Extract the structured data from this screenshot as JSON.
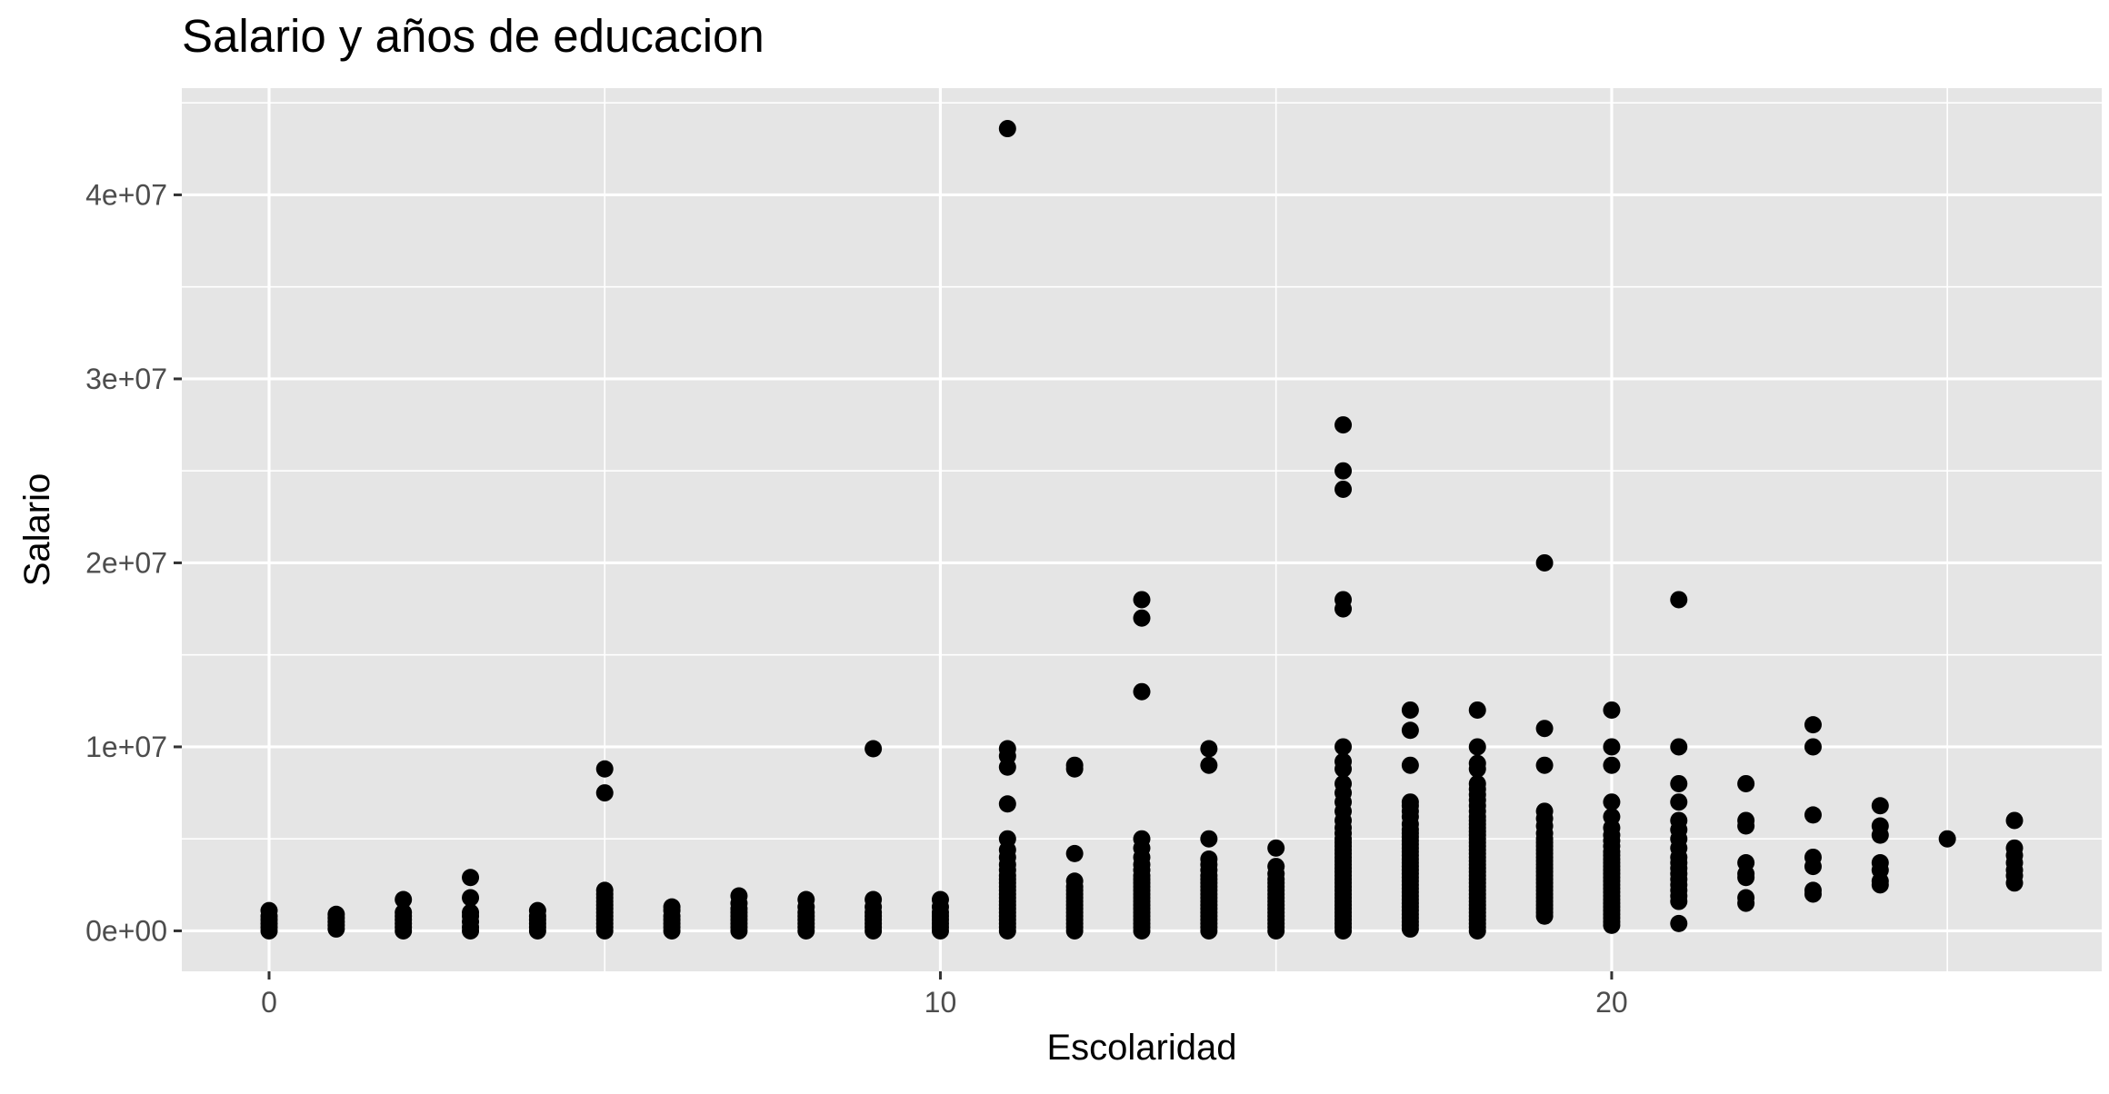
{
  "chart_data": {
    "type": "scatter",
    "title": "Salario y años de educacion",
    "xlabel": "Escolaridad",
    "ylabel": "Salario",
    "xlim": [
      -1.3,
      27.3
    ],
    "ylim": [
      -2200000,
      45800000
    ],
    "x_ticks": [
      0,
      10,
      20
    ],
    "x_tick_labels": [
      "0",
      "10",
      "20"
    ],
    "y_ticks": [
      0,
      10000000,
      20000000,
      30000000,
      40000000
    ],
    "y_tick_labels": [
      "0e+00",
      "1e+07",
      "2e+07",
      "3e+07",
      "4e+07"
    ],
    "grid": true,
    "legend": "none",
    "colors": {
      "panel": "#E5E5E5",
      "grid": "#FFFFFF",
      "point": "#000000",
      "text": "#4D4D4D",
      "title": "#000000"
    },
    "points": [
      [
        0,
        0
      ],
      [
        0,
        200000
      ],
      [
        0,
        400000
      ],
      [
        0,
        600000
      ],
      [
        0,
        800000
      ],
      [
        0,
        1100000
      ],
      [
        1,
        100000
      ],
      [
        1,
        300000
      ],
      [
        1,
        500000
      ],
      [
        1,
        700000
      ],
      [
        1,
        900000
      ],
      [
        2,
        0
      ],
      [
        2,
        200000
      ],
      [
        2,
        400000
      ],
      [
        2,
        600000
      ],
      [
        2,
        800000
      ],
      [
        2,
        1000000
      ],
      [
        2,
        1700000
      ],
      [
        3,
        0
      ],
      [
        3,
        200000
      ],
      [
        3,
        500000
      ],
      [
        3,
        800000
      ],
      [
        3,
        1000000
      ],
      [
        3,
        1800000
      ],
      [
        3,
        2900000
      ],
      [
        4,
        0
      ],
      [
        4,
        200000
      ],
      [
        4,
        400000
      ],
      [
        4,
        600000
      ],
      [
        4,
        800000
      ],
      [
        4,
        1100000
      ],
      [
        5,
        0
      ],
      [
        5,
        200000
      ],
      [
        5,
        400000
      ],
      [
        5,
        600000
      ],
      [
        5,
        800000
      ],
      [
        5,
        1000000
      ],
      [
        5,
        1200000
      ],
      [
        5,
        1400000
      ],
      [
        5,
        1600000
      ],
      [
        5,
        1800000
      ],
      [
        5,
        2000000
      ],
      [
        5,
        2200000
      ],
      [
        5,
        7500000
      ],
      [
        5,
        8800000
      ],
      [
        6,
        0
      ],
      [
        6,
        200000
      ],
      [
        6,
        400000
      ],
      [
        6,
        600000
      ],
      [
        6,
        800000
      ],
      [
        6,
        1100000
      ],
      [
        6,
        1300000
      ],
      [
        7,
        0
      ],
      [
        7,
        200000
      ],
      [
        7,
        400000
      ],
      [
        7,
        600000
      ],
      [
        7,
        800000
      ],
      [
        7,
        1000000
      ],
      [
        7,
        1200000
      ],
      [
        7,
        1500000
      ],
      [
        7,
        1900000
      ],
      [
        8,
        0
      ],
      [
        8,
        200000
      ],
      [
        8,
        400000
      ],
      [
        8,
        600000
      ],
      [
        8,
        800000
      ],
      [
        8,
        1000000
      ],
      [
        8,
        1300000
      ],
      [
        8,
        1700000
      ],
      [
        9,
        0
      ],
      [
        9,
        200000
      ],
      [
        9,
        400000
      ],
      [
        9,
        600000
      ],
      [
        9,
        800000
      ],
      [
        9,
        1000000
      ],
      [
        9,
        1300000
      ],
      [
        9,
        1700000
      ],
      [
        9,
        9900000
      ],
      [
        10,
        0
      ],
      [
        10,
        200000
      ],
      [
        10,
        400000
      ],
      [
        10,
        600000
      ],
      [
        10,
        800000
      ],
      [
        10,
        1000000
      ],
      [
        10,
        1300000
      ],
      [
        10,
        1700000
      ],
      [
        11,
        0
      ],
      [
        11,
        200000
      ],
      [
        11,
        400000
      ],
      [
        11,
        600000
      ],
      [
        11,
        800000
      ],
      [
        11,
        1000000
      ],
      [
        11,
        1200000
      ],
      [
        11,
        1400000
      ],
      [
        11,
        1600000
      ],
      [
        11,
        1800000
      ],
      [
        11,
        2000000
      ],
      [
        11,
        2200000
      ],
      [
        11,
        2400000
      ],
      [
        11,
        2600000
      ],
      [
        11,
        2800000
      ],
      [
        11,
        3000000
      ],
      [
        11,
        3300000
      ],
      [
        11,
        3600000
      ],
      [
        11,
        4000000
      ],
      [
        11,
        4400000
      ],
      [
        11,
        5000000
      ],
      [
        11,
        6900000
      ],
      [
        11,
        8900000
      ],
      [
        11,
        9500000
      ],
      [
        11,
        9900000
      ],
      [
        11,
        43600000
      ],
      [
        12,
        0
      ],
      [
        12,
        200000
      ],
      [
        12,
        400000
      ],
      [
        12,
        600000
      ],
      [
        12,
        800000
      ],
      [
        12,
        1000000
      ],
      [
        12,
        1200000
      ],
      [
        12,
        1400000
      ],
      [
        12,
        1600000
      ],
      [
        12,
        1800000
      ],
      [
        12,
        2000000
      ],
      [
        12,
        2200000
      ],
      [
        12,
        2400000
      ],
      [
        12,
        2700000
      ],
      [
        12,
        4200000
      ],
      [
        12,
        8800000
      ],
      [
        12,
        9000000
      ],
      [
        13,
        0
      ],
      [
        13,
        200000
      ],
      [
        13,
        400000
      ],
      [
        13,
        600000
      ],
      [
        13,
        800000
      ],
      [
        13,
        1000000
      ],
      [
        13,
        1200000
      ],
      [
        13,
        1400000
      ],
      [
        13,
        1600000
      ],
      [
        13,
        1800000
      ],
      [
        13,
        2000000
      ],
      [
        13,
        2200000
      ],
      [
        13,
        2400000
      ],
      [
        13,
        2600000
      ],
      [
        13,
        2800000
      ],
      [
        13,
        3000000
      ],
      [
        13,
        3300000
      ],
      [
        13,
        3600000
      ],
      [
        13,
        4000000
      ],
      [
        13,
        4500000
      ],
      [
        13,
        5000000
      ],
      [
        13,
        13000000
      ],
      [
        13,
        17000000
      ],
      [
        13,
        18000000
      ],
      [
        14,
        0
      ],
      [
        14,
        200000
      ],
      [
        14,
        400000
      ],
      [
        14,
        600000
      ],
      [
        14,
        800000
      ],
      [
        14,
        1000000
      ],
      [
        14,
        1200000
      ],
      [
        14,
        1400000
      ],
      [
        14,
        1600000
      ],
      [
        14,
        1800000
      ],
      [
        14,
        2000000
      ],
      [
        14,
        2200000
      ],
      [
        14,
        2400000
      ],
      [
        14,
        2600000
      ],
      [
        14,
        2800000
      ],
      [
        14,
        3000000
      ],
      [
        14,
        3300000
      ],
      [
        14,
        3600000
      ],
      [
        14,
        3900000
      ],
      [
        14,
        5000000
      ],
      [
        14,
        9000000
      ],
      [
        14,
        9900000
      ],
      [
        15,
        0
      ],
      [
        15,
        200000
      ],
      [
        15,
        400000
      ],
      [
        15,
        600000
      ],
      [
        15,
        800000
      ],
      [
        15,
        1000000
      ],
      [
        15,
        1200000
      ],
      [
        15,
        1400000
      ],
      [
        15,
        1600000
      ],
      [
        15,
        1800000
      ],
      [
        15,
        2000000
      ],
      [
        15,
        2200000
      ],
      [
        15,
        2400000
      ],
      [
        15,
        2600000
      ],
      [
        15,
        2800000
      ],
      [
        15,
        3100000
      ],
      [
        15,
        3500000
      ],
      [
        15,
        4500000
      ],
      [
        16,
        0
      ],
      [
        16,
        200000
      ],
      [
        16,
        400000
      ],
      [
        16,
        600000
      ],
      [
        16,
        800000
      ],
      [
        16,
        1000000
      ],
      [
        16,
        1200000
      ],
      [
        16,
        1400000
      ],
      [
        16,
        1600000
      ],
      [
        16,
        1800000
      ],
      [
        16,
        2000000
      ],
      [
        16,
        2200000
      ],
      [
        16,
        2400000
      ],
      [
        16,
        2600000
      ],
      [
        16,
        2800000
      ],
      [
        16,
        3000000
      ],
      [
        16,
        3200000
      ],
      [
        16,
        3400000
      ],
      [
        16,
        3600000
      ],
      [
        16,
        3800000
      ],
      [
        16,
        4000000
      ],
      [
        16,
        4200000
      ],
      [
        16,
        4400000
      ],
      [
        16,
        4600000
      ],
      [
        16,
        4800000
      ],
      [
        16,
        5000000
      ],
      [
        16,
        5300000
      ],
      [
        16,
        5600000
      ],
      [
        16,
        6000000
      ],
      [
        16,
        6500000
      ],
      [
        16,
        7000000
      ],
      [
        16,
        7500000
      ],
      [
        16,
        8000000
      ],
      [
        16,
        8800000
      ],
      [
        16,
        9200000
      ],
      [
        16,
        10000000
      ],
      [
        16,
        17500000
      ],
      [
        16,
        18000000
      ],
      [
        16,
        24000000
      ],
      [
        16,
        25000000
      ],
      [
        16,
        27500000
      ],
      [
        17,
        100000
      ],
      [
        17,
        300000
      ],
      [
        17,
        500000
      ],
      [
        17,
        700000
      ],
      [
        17,
        900000
      ],
      [
        17,
        1100000
      ],
      [
        17,
        1300000
      ],
      [
        17,
        1500000
      ],
      [
        17,
        1700000
      ],
      [
        17,
        1900000
      ],
      [
        17,
        2100000
      ],
      [
        17,
        2300000
      ],
      [
        17,
        2500000
      ],
      [
        17,
        2700000
      ],
      [
        17,
        2900000
      ],
      [
        17,
        3100000
      ],
      [
        17,
        3300000
      ],
      [
        17,
        3500000
      ],
      [
        17,
        3700000
      ],
      [
        17,
        3900000
      ],
      [
        17,
        4100000
      ],
      [
        17,
        4300000
      ],
      [
        17,
        4500000
      ],
      [
        17,
        4700000
      ],
      [
        17,
        4900000
      ],
      [
        17,
        5100000
      ],
      [
        17,
        5300000
      ],
      [
        17,
        5500000
      ],
      [
        17,
        5800000
      ],
      [
        17,
        6200000
      ],
      [
        17,
        6500000
      ],
      [
        17,
        6800000
      ],
      [
        17,
        7000000
      ],
      [
        17,
        9000000
      ],
      [
        17,
        10900000
      ],
      [
        17,
        12000000
      ],
      [
        18,
        0
      ],
      [
        18,
        200000
      ],
      [
        18,
        400000
      ],
      [
        18,
        600000
      ],
      [
        18,
        800000
      ],
      [
        18,
        1000000
      ],
      [
        18,
        1200000
      ],
      [
        18,
        1400000
      ],
      [
        18,
        1600000
      ],
      [
        18,
        1800000
      ],
      [
        18,
        2000000
      ],
      [
        18,
        2200000
      ],
      [
        18,
        2400000
      ],
      [
        18,
        2600000
      ],
      [
        18,
        2800000
      ],
      [
        18,
        3000000
      ],
      [
        18,
        3200000
      ],
      [
        18,
        3400000
      ],
      [
        18,
        3600000
      ],
      [
        18,
        3800000
      ],
      [
        18,
        4000000
      ],
      [
        18,
        4200000
      ],
      [
        18,
        4400000
      ],
      [
        18,
        4600000
      ],
      [
        18,
        4800000
      ],
      [
        18,
        5000000
      ],
      [
        18,
        5200000
      ],
      [
        18,
        5400000
      ],
      [
        18,
        5600000
      ],
      [
        18,
        5800000
      ],
      [
        18,
        6000000
      ],
      [
        18,
        6200000
      ],
      [
        18,
        6500000
      ],
      [
        18,
        6800000
      ],
      [
        18,
        7100000
      ],
      [
        18,
        7400000
      ],
      [
        18,
        7700000
      ],
      [
        18,
        8000000
      ],
      [
        18,
        8800000
      ],
      [
        18,
        9100000
      ],
      [
        18,
        10000000
      ],
      [
        18,
        12000000
      ],
      [
        19,
        800000
      ],
      [
        19,
        1000000
      ],
      [
        19,
        1200000
      ],
      [
        19,
        1400000
      ],
      [
        19,
        1600000
      ],
      [
        19,
        1800000
      ],
      [
        19,
        2000000
      ],
      [
        19,
        2200000
      ],
      [
        19,
        2400000
      ],
      [
        19,
        2600000
      ],
      [
        19,
        2800000
      ],
      [
        19,
        3000000
      ],
      [
        19,
        3200000
      ],
      [
        19,
        3400000
      ],
      [
        19,
        3600000
      ],
      [
        19,
        3800000
      ],
      [
        19,
        4000000
      ],
      [
        19,
        4200000
      ],
      [
        19,
        4400000
      ],
      [
        19,
        4600000
      ],
      [
        19,
        4800000
      ],
      [
        19,
        5000000
      ],
      [
        19,
        5300000
      ],
      [
        19,
        5700000
      ],
      [
        19,
        6100000
      ],
      [
        19,
        6500000
      ],
      [
        19,
        9000000
      ],
      [
        19,
        11000000
      ],
      [
        19,
        20000000
      ],
      [
        20,
        300000
      ],
      [
        20,
        500000
      ],
      [
        20,
        700000
      ],
      [
        20,
        900000
      ],
      [
        20,
        1100000
      ],
      [
        20,
        1300000
      ],
      [
        20,
        1500000
      ],
      [
        20,
        1700000
      ],
      [
        20,
        1900000
      ],
      [
        20,
        2100000
      ],
      [
        20,
        2300000
      ],
      [
        20,
        2500000
      ],
      [
        20,
        2700000
      ],
      [
        20,
        2900000
      ],
      [
        20,
        3100000
      ],
      [
        20,
        3300000
      ],
      [
        20,
        3500000
      ],
      [
        20,
        3700000
      ],
      [
        20,
        3900000
      ],
      [
        20,
        4100000
      ],
      [
        20,
        4300000
      ],
      [
        20,
        4600000
      ],
      [
        20,
        4900000
      ],
      [
        20,
        5200000
      ],
      [
        20,
        5600000
      ],
      [
        20,
        6200000
      ],
      [
        20,
        7000000
      ],
      [
        20,
        9000000
      ],
      [
        20,
        10000000
      ],
      [
        20,
        12000000
      ],
      [
        21,
        400000
      ],
      [
        21,
        1600000
      ],
      [
        21,
        1900000
      ],
      [
        21,
        2200000
      ],
      [
        21,
        2500000
      ],
      [
        21,
        2800000
      ],
      [
        21,
        3100000
      ],
      [
        21,
        3400000
      ],
      [
        21,
        3700000
      ],
      [
        21,
        4000000
      ],
      [
        21,
        4500000
      ],
      [
        21,
        5000000
      ],
      [
        21,
        5500000
      ],
      [
        21,
        6000000
      ],
      [
        21,
        7000000
      ],
      [
        21,
        8000000
      ],
      [
        21,
        10000000
      ],
      [
        21,
        18000000
      ],
      [
        22,
        1500000
      ],
      [
        22,
        1800000
      ],
      [
        22,
        2900000
      ],
      [
        22,
        3100000
      ],
      [
        22,
        3700000
      ],
      [
        22,
        5700000
      ],
      [
        22,
        6000000
      ],
      [
        22,
        8000000
      ],
      [
        23,
        2000000
      ],
      [
        23,
        2200000
      ],
      [
        23,
        3500000
      ],
      [
        23,
        4000000
      ],
      [
        23,
        6300000
      ],
      [
        23,
        10000000
      ],
      [
        23,
        11200000
      ],
      [
        24,
        2500000
      ],
      [
        24,
        2700000
      ],
      [
        24,
        3300000
      ],
      [
        24,
        3700000
      ],
      [
        24,
        5200000
      ],
      [
        24,
        5700000
      ],
      [
        24,
        6800000
      ],
      [
        25,
        5000000
      ],
      [
        26,
        2600000
      ],
      [
        26,
        3000000
      ],
      [
        26,
        3300000
      ],
      [
        26,
        3700000
      ],
      [
        26,
        4100000
      ],
      [
        26,
        4500000
      ],
      [
        26,
        6000000
      ]
    ]
  }
}
